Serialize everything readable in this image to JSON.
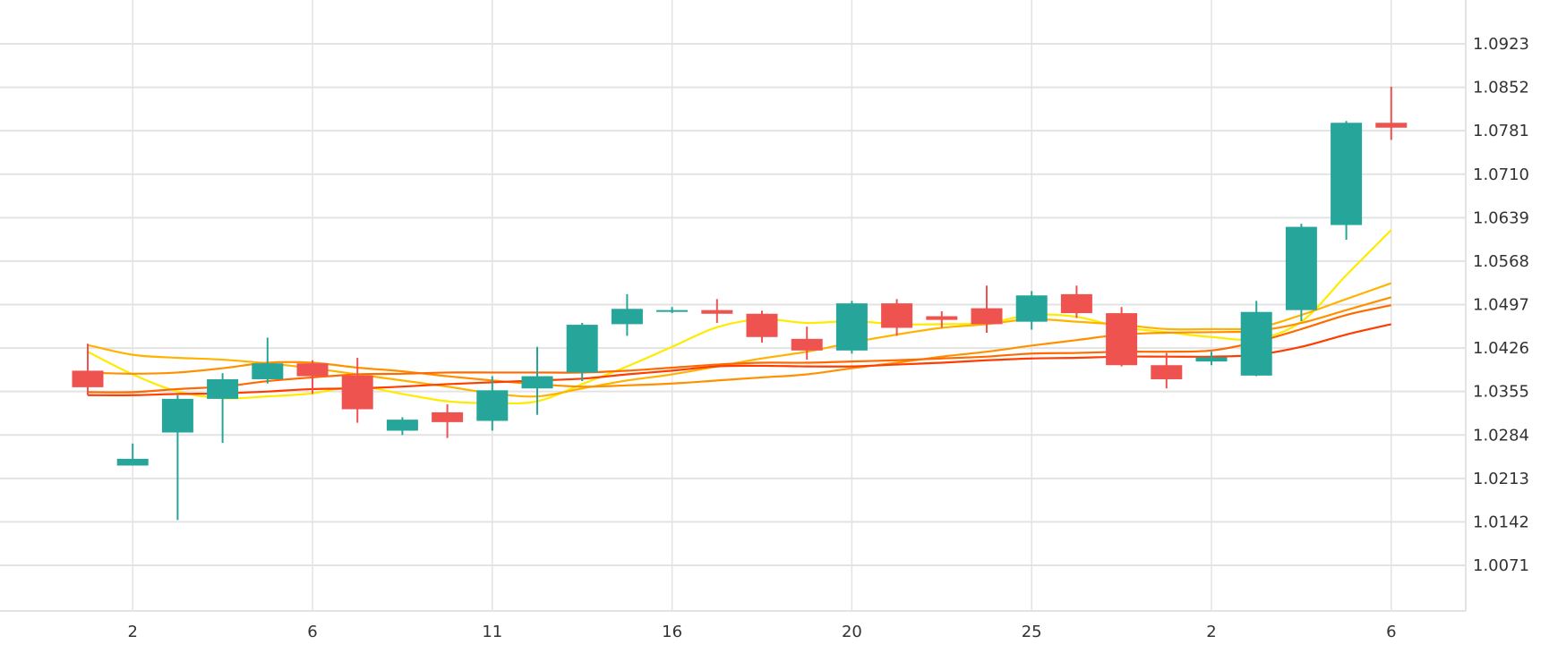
{
  "chart_data": {
    "type": "candlestick",
    "title": "",
    "x_tick_labels": [
      "2",
      "6",
      "11",
      "16",
      "20",
      "25",
      "2",
      "6"
    ],
    "x_tick_indices": [
      1,
      5,
      9,
      13,
      17,
      21,
      25,
      29
    ],
    "y_ticks": [
      "1.0071",
      "1.0142",
      "1.0213",
      "1.0284",
      "1.0355",
      "1.0426",
      "1.0497",
      "1.0568",
      "1.0639",
      "1.0710",
      "1.0781",
      "1.0852",
      "1.0923"
    ],
    "ylim": [
      0.9995,
      1.0995
    ],
    "grid": true,
    "up_color": "#26a69a",
    "down_color": "#ef5350",
    "candles": [
      {
        "o": 1.0389,
        "h": 1.0433,
        "l": 1.0349,
        "c": 1.0362
      },
      {
        "o": 1.0234,
        "h": 1.027,
        "l": 1.0234,
        "c": 1.0245
      },
      {
        "o": 1.0288,
        "h": 1.0349,
        "l": 1.0145,
        "c": 1.0343
      },
      {
        "o": 1.0343,
        "h": 1.0385,
        "l": 1.0271,
        "c": 1.0375
      },
      {
        "o": 1.0375,
        "h": 1.0443,
        "l": 1.0368,
        "c": 1.0401
      },
      {
        "o": 1.0401,
        "h": 1.0406,
        "l": 1.0351,
        "c": 1.038
      },
      {
        "o": 1.0381,
        "h": 1.041,
        "l": 1.0304,
        "c": 1.0326
      },
      {
        "o": 1.0291,
        "h": 1.0313,
        "l": 1.0284,
        "c": 1.0309
      },
      {
        "o": 1.0321,
        "h": 1.0334,
        "l": 1.0279,
        "c": 1.0305
      },
      {
        "o": 1.0307,
        "h": 1.038,
        "l": 1.0291,
        "c": 1.0357
      },
      {
        "o": 1.036,
        "h": 1.0428,
        "l": 1.0317,
        "c": 1.038
      },
      {
        "o": 1.0386,
        "h": 1.0467,
        "l": 1.0372,
        "c": 1.0464
      },
      {
        "o": 1.0465,
        "h": 1.0514,
        "l": 1.0446,
        "c": 1.049
      },
      {
        "o": 1.0487,
        "h": 1.0493,
        "l": 1.0483,
        "c": 1.0488
      },
      {
        "o": 1.0488,
        "h": 1.0506,
        "l": 1.0467,
        "c": 1.0482
      },
      {
        "o": 1.0482,
        "h": 1.0487,
        "l": 1.0435,
        "c": 1.0444
      },
      {
        "o": 1.0441,
        "h": 1.0461,
        "l": 1.0407,
        "c": 1.0422
      },
      {
        "o": 1.0422,
        "h": 1.0503,
        "l": 1.0417,
        "c": 1.0499
      },
      {
        "o": 1.0499,
        "h": 1.0506,
        "l": 1.0446,
        "c": 1.0459
      },
      {
        "o": 1.0478,
        "h": 1.0486,
        "l": 1.0459,
        "c": 1.0472
      },
      {
        "o": 1.0491,
        "h": 1.0528,
        "l": 1.0451,
        "c": 1.0465
      },
      {
        "o": 1.0469,
        "h": 1.0519,
        "l": 1.0456,
        "c": 1.0512
      },
      {
        "o": 1.0514,
        "h": 1.0528,
        "l": 1.0475,
        "c": 1.0483
      },
      {
        "o": 1.0483,
        "h": 1.0493,
        "l": 1.0396,
        "c": 1.0398
      },
      {
        "o": 1.0398,
        "h": 1.0418,
        "l": 1.036,
        "c": 1.0375
      },
      {
        "o": 1.0404,
        "h": 1.042,
        "l": 1.0398,
        "c": 1.0411
      },
      {
        "o": 1.0381,
        "h": 1.0503,
        "l": 1.038,
        "c": 1.0485
      },
      {
        "o": 1.0488,
        "h": 1.0629,
        "l": 1.047,
        "c": 1.0624
      },
      {
        "o": 1.0627,
        "h": 1.0797,
        "l": 1.0603,
        "c": 1.0794
      },
      {
        "o": 1.0794,
        "h": 1.0853,
        "l": 1.0766,
        "c": 1.0786
      }
    ],
    "series": [
      {
        "name": "ma-yellow",
        "color": "#ffeb00",
        "values": [
          1.042,
          1.0383,
          1.0355,
          1.0344,
          1.0347,
          1.0352,
          1.0363,
          1.0351,
          1.0339,
          1.0336,
          1.0339,
          1.0367,
          1.0396,
          1.0428,
          1.046,
          1.0473,
          1.0467,
          1.047,
          1.0465,
          1.0465,
          1.0467,
          1.048,
          1.0477,
          1.046,
          1.0452,
          1.0444,
          1.0441,
          1.0469,
          1.0545,
          1.0619
        ]
      },
      {
        "name": "ma-amber",
        "color": "#ffb300",
        "values": [
          1.0431,
          1.0415,
          1.041,
          1.0407,
          1.0401,
          1.0393,
          1.0383,
          1.0373,
          1.0363,
          1.0352,
          1.0347,
          1.036,
          1.0373,
          1.0383,
          1.0396,
          1.0409,
          1.042,
          1.0435,
          1.0448,
          1.0459,
          1.0465,
          1.0473,
          1.0469,
          1.0464,
          1.0457,
          1.0457,
          1.0459,
          1.048,
          1.0506,
          1.0532
        ]
      },
      {
        "name": "ma-orange",
        "color": "#ff9100",
        "values": [
          1.0386,
          1.0384,
          1.0386,
          1.0393,
          1.0402,
          1.0402,
          1.0394,
          1.0388,
          1.038,
          1.0373,
          1.0367,
          1.0363,
          1.0365,
          1.0368,
          1.0373,
          1.0378,
          1.0383,
          1.0393,
          1.0402,
          1.0412,
          1.042,
          1.043,
          1.0439,
          1.0448,
          1.0451,
          1.0452,
          1.0454,
          1.0467,
          1.0488,
          1.0509
        ]
      },
      {
        "name": "ma-orange-red",
        "color": "#ff6a00",
        "values": [
          1.0354,
          1.0354,
          1.0359,
          1.0363,
          1.0372,
          1.0378,
          1.0383,
          1.0384,
          1.0386,
          1.0386,
          1.0386,
          1.0386,
          1.0389,
          1.0394,
          1.0399,
          1.0402,
          1.0402,
          1.0404,
          1.0406,
          1.0409,
          1.0412,
          1.0417,
          1.0418,
          1.042,
          1.042,
          1.0422,
          1.0436,
          1.0457,
          1.048,
          1.0496
        ]
      },
      {
        "name": "ma-red",
        "color": "#ff3d00",
        "values": [
          1.0349,
          1.0349,
          1.0351,
          1.0352,
          1.0355,
          1.0359,
          1.036,
          1.0363,
          1.0367,
          1.037,
          1.0373,
          1.0376,
          1.0383,
          1.0389,
          1.0396,
          1.0397,
          1.0396,
          1.0396,
          1.0399,
          1.0402,
          1.0406,
          1.0409,
          1.041,
          1.0412,
          1.0412,
          1.0412,
          1.0415,
          1.0428,
          1.0448,
          1.0465
        ]
      }
    ]
  }
}
